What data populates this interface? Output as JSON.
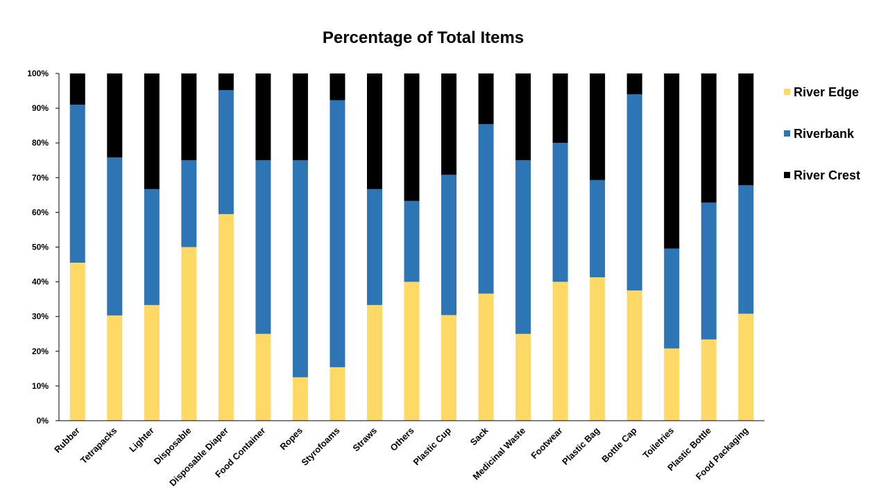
{
  "chart_data": {
    "type": "bar",
    "stacked": true,
    "percent_stacked": true,
    "title": "Percentage of Total Items",
    "xlabel": "",
    "ylabel": "",
    "ylim": [
      0,
      100
    ],
    "y_ticks": [
      "0%",
      "10%",
      "20%",
      "30%",
      "40%",
      "50%",
      "60%",
      "70%",
      "80%",
      "90%",
      "100%"
    ],
    "grid": false,
    "legend_position": "right",
    "categories": [
      "Rubber",
      "Tetrapacks",
      "Lighter",
      "Disposable",
      "Disposable Diaper",
      "Food Container",
      "Ropes",
      "Styrofoams",
      "Straws",
      "Others",
      "Plastic Cup",
      "Sack",
      "Medicinal Waste",
      "Footwear",
      "Plastic Bag",
      "Bottle Cap",
      "Toiletries",
      "Plastic Bottle",
      "Food Packaging"
    ],
    "series": [
      {
        "name": "River Edge",
        "color": "#FFD966",
        "values": [
          45.5,
          30.3,
          33.3,
          50.0,
          59.5,
          25.0,
          12.5,
          15.4,
          33.3,
          40.0,
          30.4,
          36.6,
          25.0,
          40.0,
          41.3,
          37.5,
          20.8,
          23.4,
          30.8
        ]
      },
      {
        "name": "Riverbank",
        "color": "#2E75B6",
        "values": [
          45.5,
          45.5,
          33.4,
          25.0,
          35.7,
          50.0,
          62.5,
          76.9,
          33.4,
          23.3,
          40.4,
          48.8,
          50.0,
          40.0,
          28.0,
          56.5,
          28.8,
          39.4,
          37.0
        ]
      },
      {
        "name": "River Crest",
        "color": "#000000",
        "values": [
          9.0,
          24.2,
          33.3,
          25.0,
          4.8,
          25.0,
          25.0,
          7.7,
          33.3,
          36.7,
          29.2,
          14.6,
          25.0,
          20.0,
          30.7,
          6.0,
          50.4,
          37.2,
          32.2
        ]
      }
    ]
  }
}
